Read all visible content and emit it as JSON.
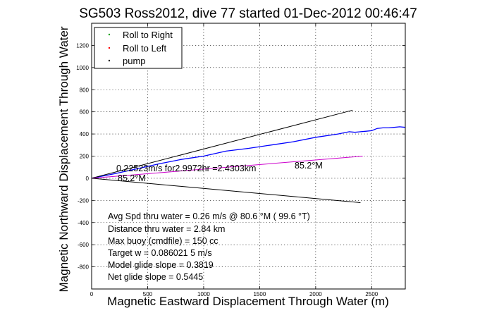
{
  "chart_data": {
    "type": "line",
    "title": "SG503 Ross2012, dive 77 started 01-Dec-2012 00:46:47",
    "xlabel": "Magnetic Eastward Displacement Through Water (m)",
    "ylabel": "Magnetic Northward Displacement Through Water",
    "xlim": [
      0,
      2800
    ],
    "ylim": [
      -1000,
      1400
    ],
    "xticks": [
      0,
      500,
      1000,
      1500,
      2000,
      2500
    ],
    "xtick_labels": [
      "0",
      "500",
      "1000",
      "1500",
      "2000",
      "2500"
    ],
    "yticks": [
      -800,
      -600,
      -400,
      -200,
      0,
      200,
      400,
      600,
      800,
      1000,
      1200
    ],
    "ytick_labels": [
      "-800",
      "-600",
      "-400",
      "-200",
      "0",
      "200",
      "400",
      "600",
      "800",
      "1000",
      "1200"
    ],
    "grid": true,
    "legend": {
      "position": "top-left",
      "entries": [
        {
          "label": "Roll to Right",
          "color": "#00a000",
          "marker": "dot"
        },
        {
          "label": "Roll to Left",
          "color": "#ff0000",
          "marker": "dot"
        },
        {
          "label": "pump",
          "color": "#000000",
          "marker": "dot"
        }
      ]
    },
    "series": [
      {
        "color": "#0000ff",
        "x": [
          0,
          200,
          400,
          600,
          800,
          1000,
          1200,
          1400,
          1600,
          1800,
          2000,
          2200,
          2300,
          2350,
          2400,
          2450,
          2500,
          2550,
          2600,
          2650,
          2700,
          2750,
          2800
        ],
        "y": [
          0,
          40,
          85,
          130,
          170,
          200,
          245,
          270,
          300,
          330,
          370,
          400,
          420,
          415,
          420,
          425,
          430,
          450,
          455,
          455,
          460,
          465,
          460
        ]
      },
      {
        "color": "#000000",
        "x": [
          0,
          2330
        ],
        "y": [
          0,
          615
        ]
      },
      {
        "color": "#000000",
        "x": [
          0,
          2400
        ],
        "y": [
          0,
          -220
        ]
      },
      {
        "color": "#cc00cc",
        "x": [
          0,
          2420
        ],
        "y": [
          0,
          200
        ]
      }
    ],
    "annotations": {
      "speed": "0.22523m/s for2.9972hr =2.4303km",
      "heading_upper": "85.2°M",
      "heading_lower": "85.2°M"
    },
    "stats": [
      "Avg Spd thru water =  0.26 m/s @  80.6    °M ( 99.6 °T)",
      "Distance thru water =  2.84 km",
      "Max buoy (cmdfile) = 150 cc",
      "Target w = 0.086021 5 m/s",
      "Model glide slope = 0.3819",
      "Net glide slope = 0.5445"
    ]
  }
}
